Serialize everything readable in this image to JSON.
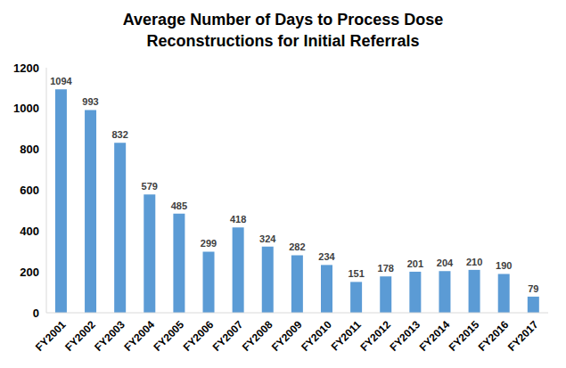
{
  "chart_data": {
    "type": "bar",
    "title": "Average Number of Days to Process Dose Reconstructions for Initial Referrals",
    "categories": [
      "FY2001",
      "FY2002",
      "FY2003",
      "FY2004",
      "FY2005",
      "FY2006",
      "FY2007",
      "FY2008",
      "FY2009",
      "FY2010",
      "FY2011",
      "FY2012",
      "FY2013",
      "FY2014",
      "FY2015",
      "FY2016",
      "FY2017"
    ],
    "values": [
      1094,
      993,
      832,
      579,
      485,
      299,
      418,
      324,
      282,
      234,
      151,
      178,
      201,
      204,
      210,
      190,
      79
    ],
    "color": "#5b9bd5",
    "ylim": [
      0,
      1200
    ],
    "yticks": [
      0,
      200,
      400,
      600,
      800,
      1000,
      1200
    ],
    "grid": false,
    "data_labels": true
  }
}
